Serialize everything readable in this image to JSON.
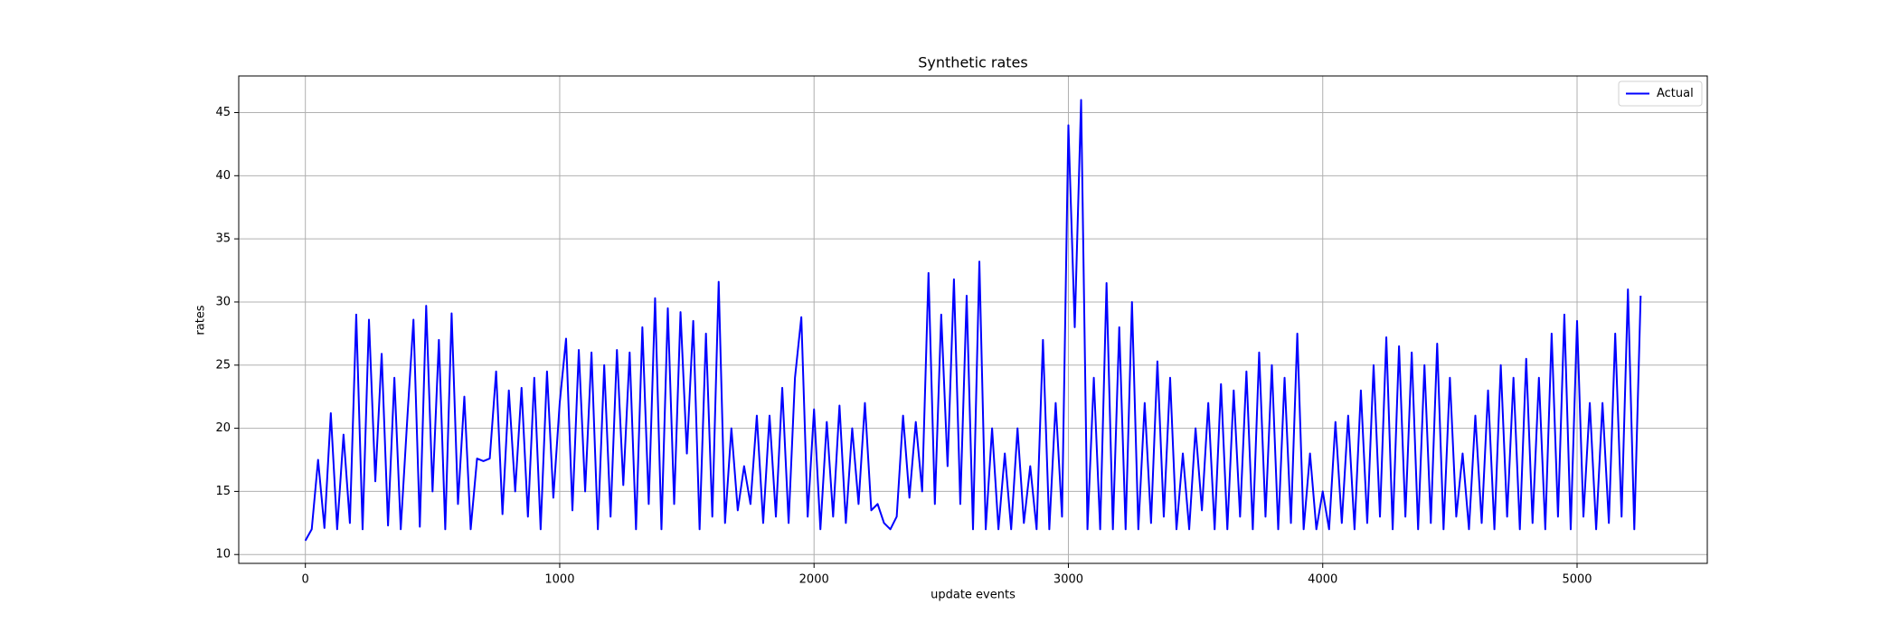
{
  "chart_data": {
    "type": "line",
    "title": "Synthetic rates",
    "xlabel": "update events",
    "ylabel": "rates",
    "x": [
      0,
      25,
      50,
      75,
      100,
      125,
      150,
      175,
      200,
      225,
      250,
      275,
      300,
      325,
      350,
      375,
      400,
      425,
      450,
      475,
      500,
      525,
      550,
      575,
      600,
      625,
      650,
      675,
      700,
      725,
      750,
      775,
      800,
      825,
      850,
      875,
      900,
      925,
      950,
      975,
      1000,
      1025,
      1050,
      1075,
      1100,
      1125,
      1150,
      1175,
      1200,
      1225,
      1250,
      1275,
      1300,
      1325,
      1350,
      1375,
      1400,
      1425,
      1450,
      1475,
      1500,
      1525,
      1550,
      1575,
      1600,
      1625,
      1650,
      1675,
      1700,
      1725,
      1750,
      1775,
      1800,
      1825,
      1850,
      1875,
      1900,
      1925,
      1950,
      1975,
      2000,
      2025,
      2050,
      2075,
      2100,
      2125,
      2150,
      2175,
      2200,
      2225,
      2250,
      2275,
      2300,
      2325,
      2350,
      2375,
      2400,
      2425,
      2450,
      2475,
      2500,
      2525,
      2550,
      2575,
      2600,
      2625,
      2650,
      2675,
      2700,
      2725,
      2750,
      2775,
      2800,
      2825,
      2850,
      2875,
      2900,
      2925,
      2950,
      2975,
      3000,
      3025,
      3050,
      3075,
      3100,
      3125,
      3150,
      3175,
      3200,
      3225,
      3250,
      3275,
      3300,
      3325,
      3350,
      3375,
      3400,
      3425,
      3450,
      3475,
      3500,
      3525,
      3550,
      3575,
      3600,
      3625,
      3650,
      3675,
      3700,
      3725,
      3750,
      3775,
      3800,
      3825,
      3850,
      3875,
      3900,
      3925,
      3950,
      3975,
      4000,
      4025,
      4050,
      4075,
      4100,
      4125,
      4150,
      4175,
      4200,
      4225,
      4250,
      4275,
      4300,
      4325,
      4350,
      4375,
      4400,
      4425,
      4450,
      4475,
      4500,
      4525,
      4550,
      4575,
      4600,
      4625,
      4650,
      4675,
      4700,
      4725,
      4750,
      4775,
      4800,
      4825,
      4850,
      4875,
      4900,
      4925,
      4950,
      4975,
      5000,
      5025,
      5050,
      5075,
      5100,
      5125,
      5150,
      5175,
      5200,
      5225,
      5250
    ],
    "series": [
      {
        "name": "Actual",
        "color": "#0000ff",
        "values": [
          11.1,
          12.0,
          17.5,
          12.1,
          21.2,
          12.0,
          19.5,
          12.5,
          29.0,
          12.0,
          28.6,
          15.8,
          25.9,
          12.3,
          24.0,
          12.0,
          20.5,
          28.6,
          12.2,
          29.7,
          15.0,
          27.0,
          12.0,
          29.1,
          14.0,
          22.5,
          12.0,
          17.6,
          17.4,
          17.6,
          24.5,
          13.2,
          23.0,
          15.0,
          23.2,
          13.0,
          24.0,
          12.0,
          24.5,
          14.5,
          22.0,
          27.1,
          13.5,
          26.2,
          15.0,
          26.0,
          12.0,
          25.0,
          13.0,
          26.2,
          15.5,
          26.0,
          12.0,
          28.0,
          14.0,
          30.3,
          12.0,
          29.5,
          14.0,
          29.2,
          18.0,
          28.5,
          12.0,
          27.5,
          13.0,
          31.6,
          12.5,
          20.0,
          13.5,
          17.0,
          14.0,
          21.0,
          12.5,
          21.0,
          13.0,
          23.2,
          12.5,
          24.0,
          28.8,
          13.0,
          21.5,
          12.0,
          20.5,
          13.0,
          21.8,
          12.5,
          20.0,
          14.0,
          22.0,
          13.5,
          14.0,
          12.5,
          12.0,
          13.0,
          21.0,
          14.5,
          20.5,
          15.0,
          32.3,
          14.0,
          29.0,
          17.0,
          31.8,
          14.0,
          30.5,
          12.0,
          33.2,
          12.0,
          20.0,
          12.0,
          18.0,
          12.0,
          20.0,
          12.5,
          17.0,
          12.0,
          27.0,
          12.0,
          22.0,
          13.0,
          44.0,
          28.0,
          46.0,
          12.0,
          24.0,
          12.0,
          31.5,
          12.0,
          28.0,
          12.0,
          30.0,
          12.0,
          22.0,
          12.5,
          25.3,
          13.0,
          24.0,
          12.0,
          18.0,
          12.0,
          20.0,
          13.5,
          22.0,
          12.0,
          23.5,
          12.0,
          23.0,
          13.0,
          24.5,
          12.0,
          26.0,
          13.0,
          25.0,
          12.0,
          24.0,
          12.5,
          27.5,
          12.0,
          18.0,
          12.0,
          15.0,
          12.0,
          20.5,
          12.5,
          21.0,
          12.0,
          23.0,
          12.5,
          25.0,
          13.0,
          27.2,
          12.0,
          26.5,
          13.0,
          26.0,
          12.0,
          25.0,
          12.5,
          26.7,
          12.0,
          24.0,
          13.0,
          18.0,
          12.0,
          21.0,
          12.5,
          23.0,
          12.0,
          25.0,
          13.0,
          24.0,
          12.0,
          25.5,
          12.5,
          24.0,
          12.0,
          27.5,
          13.0,
          29.0,
          12.0,
          28.5,
          13.0,
          22.0,
          12.0,
          22.0,
          12.5,
          27.5,
          13.0,
          31.0,
          12.0,
          30.5
        ]
      }
    ],
    "xlim": [
      -262,
      5512
    ],
    "ylim": [
      9.3,
      47.9
    ],
    "xticks": [
      0,
      1000,
      2000,
      3000,
      4000,
      5000
    ],
    "yticks": [
      10,
      15,
      20,
      25,
      30,
      35,
      40,
      45
    ],
    "grid": true,
    "legend": "upper right"
  }
}
